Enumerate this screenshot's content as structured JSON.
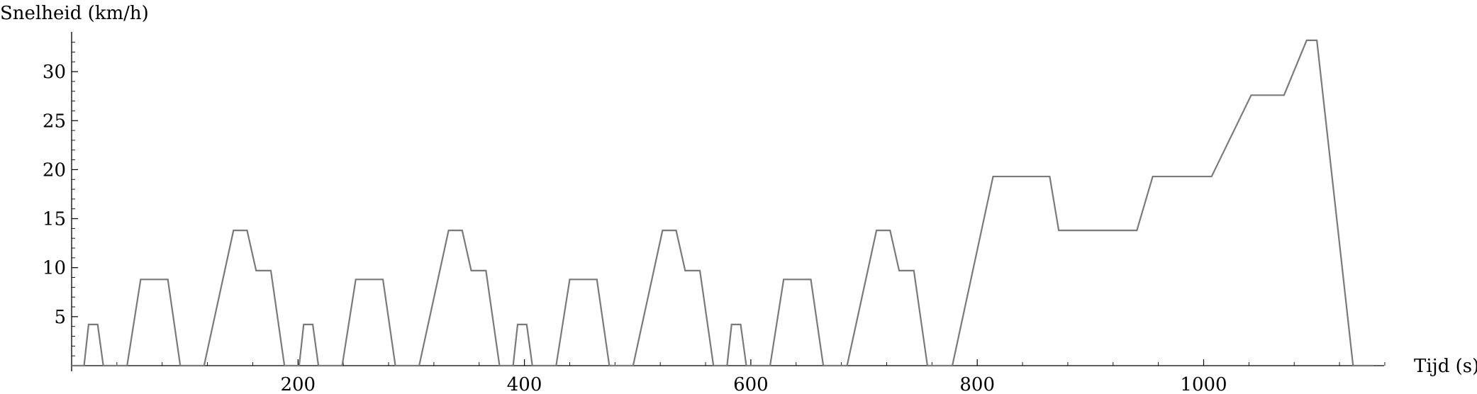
{
  "chart_data": {
    "type": "line",
    "title": "",
    "xlabel": "Tijd (s)",
    "ylabel": "Snelheid (km/h)",
    "xlim": [
      0,
      1160
    ],
    "ylim": [
      0,
      34
    ],
    "x_ticks": [
      200,
      400,
      600,
      800,
      1000
    ],
    "y_ticks": [
      5,
      10,
      15,
      20,
      25,
      30
    ],
    "grid": false,
    "legend": "none",
    "series_color": "#7a7a7a",
    "series": [
      {
        "points": [
          [
            0,
            0
          ],
          [
            11,
            0
          ],
          [
            15,
            4.2
          ],
          [
            23,
            4.2
          ],
          [
            28,
            0
          ],
          [
            49,
            0
          ],
          [
            61,
            8.8
          ],
          [
            85,
            8.8
          ],
          [
            96,
            0
          ],
          [
            117,
            0
          ],
          [
            143,
            13.8
          ],
          [
            155,
            13.8
          ],
          [
            163,
            9.7
          ],
          [
            176,
            9.7
          ],
          [
            188,
            0
          ],
          [
            201,
            0
          ],
          [
            205,
            4.2
          ],
          [
            213,
            4.2
          ],
          [
            218,
            0
          ],
          [
            239,
            0
          ],
          [
            251,
            8.8
          ],
          [
            275,
            8.8
          ],
          [
            286,
            0
          ],
          [
            307,
            0
          ],
          [
            333,
            13.8
          ],
          [
            345,
            13.8
          ],
          [
            353,
            9.7
          ],
          [
            366,
            9.7
          ],
          [
            378,
            0
          ],
          [
            390,
            0
          ],
          [
            394,
            4.2
          ],
          [
            402,
            4.2
          ],
          [
            407,
            0
          ],
          [
            428,
            0
          ],
          [
            440,
            8.8
          ],
          [
            464,
            8.8
          ],
          [
            475,
            0
          ],
          [
            496,
            0
          ],
          [
            522,
            13.8
          ],
          [
            534,
            13.8
          ],
          [
            542,
            9.7
          ],
          [
            555,
            9.7
          ],
          [
            567,
            0
          ],
          [
            579,
            0
          ],
          [
            583,
            4.2
          ],
          [
            591,
            4.2
          ],
          [
            596,
            0
          ],
          [
            617,
            0
          ],
          [
            629,
            8.8
          ],
          [
            653,
            8.8
          ],
          [
            664,
            0
          ],
          [
            685,
            0
          ],
          [
            711,
            13.8
          ],
          [
            723,
            13.8
          ],
          [
            731,
            9.7
          ],
          [
            744,
            9.7
          ],
          [
            756,
            0
          ],
          [
            778,
            0
          ],
          [
            814,
            19.3
          ],
          [
            864,
            19.3
          ],
          [
            872,
            13.8
          ],
          [
            941,
            13.8
          ],
          [
            955,
            19.3
          ],
          [
            1007,
            19.3
          ],
          [
            1042,
            27.6
          ],
          [
            1071,
            27.6
          ],
          [
            1091,
            33.2
          ],
          [
            1100,
            33.2
          ],
          [
            1132,
            0
          ],
          [
            1150,
            0
          ]
        ]
      }
    ]
  }
}
